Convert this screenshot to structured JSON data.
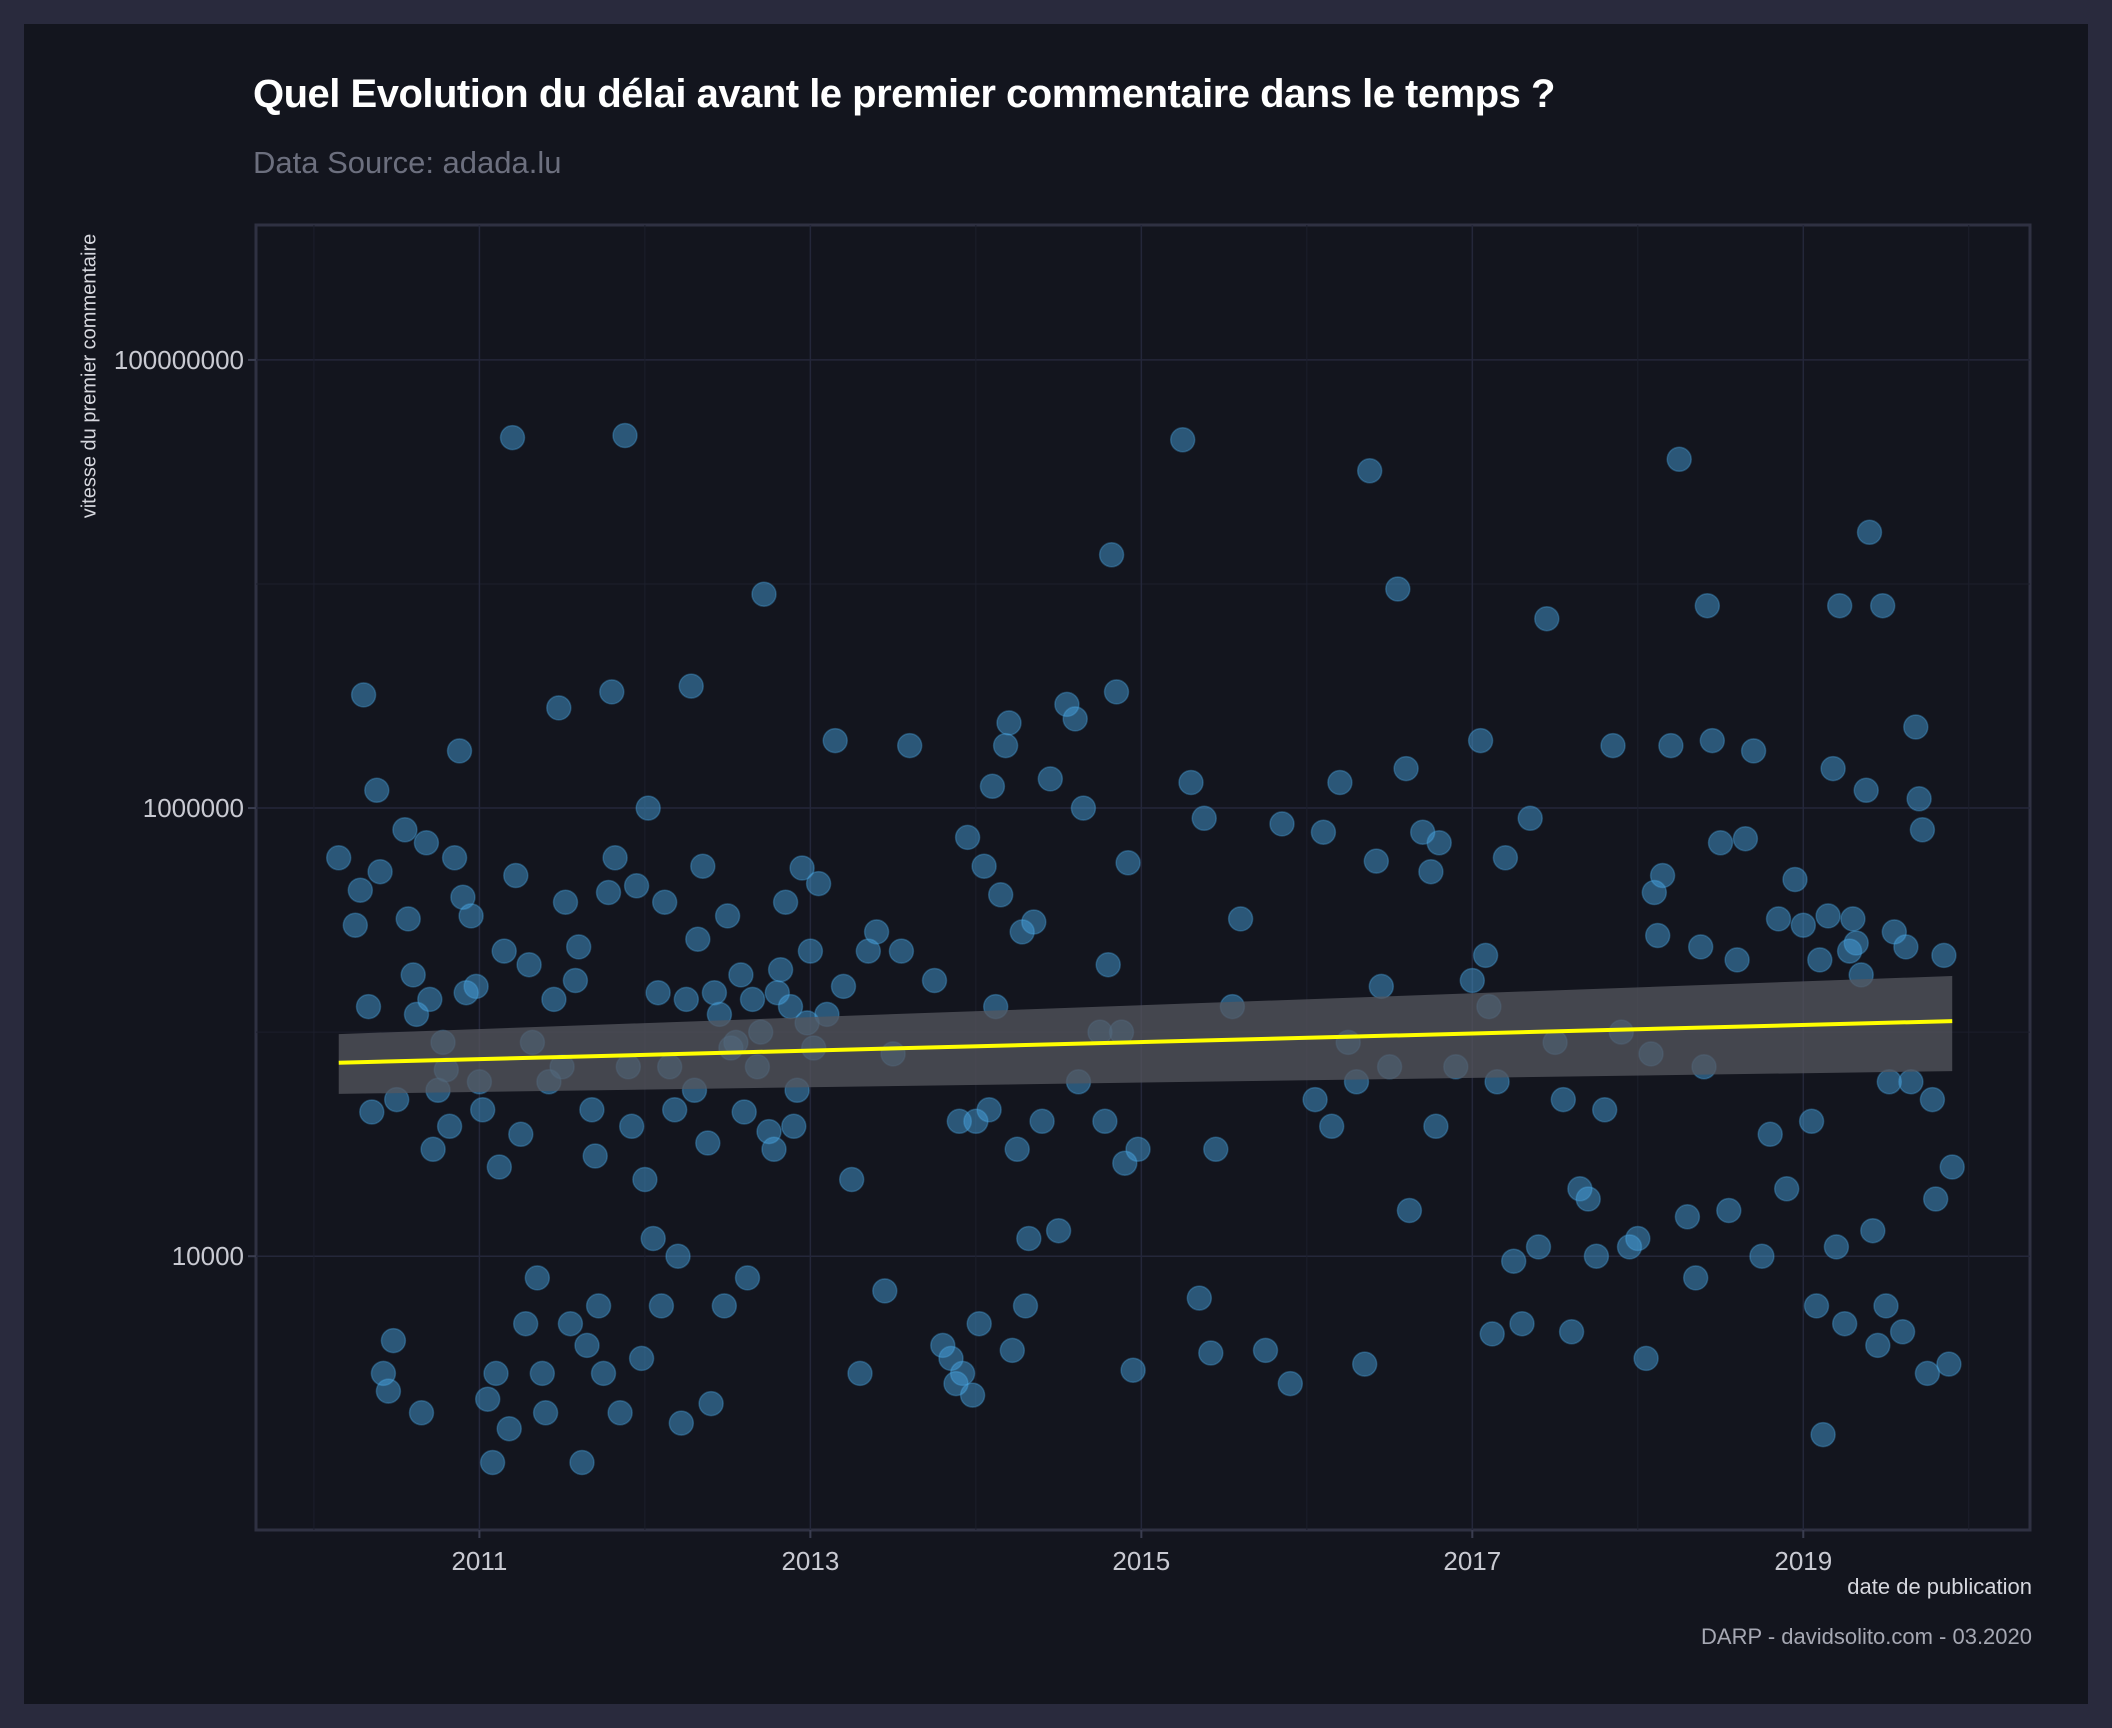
{
  "chart_data": {
    "type": "scatter",
    "title": "Quel Evolution du délai avant le premier commentaire dans le temps ?",
    "subtitle": "Data Source: adada.lu",
    "xlabel": "date de publication",
    "ylabel": "vitesse du premier commentaire",
    "caption": "DARP - davidsolito.com - 03.2020",
    "x_axis": {
      "type": "date",
      "ticks": [
        "2011",
        "2013",
        "2015",
        "2017",
        "2019"
      ],
      "range": [
        2009.65,
        2020.37
      ]
    },
    "y_axis": {
      "scale": "log10",
      "ticks": [
        "10000",
        "1000000",
        "100000000"
      ],
      "range": [
        600,
        400000000
      ]
    },
    "grid": true,
    "trend": {
      "method": "linear",
      "x": [
        2010.15,
        2019.9
      ],
      "y": [
        73000,
        112000
      ],
      "ci_low": [
        53000,
        67000
      ],
      "ci_high": [
        98000,
        178000
      ]
    },
    "colors": {
      "points": "#4aa8e6",
      "trend": "#ffff00",
      "ci_band": "#55575f",
      "background": "#13151e",
      "panel_border": "#2f3142"
    },
    "points": [
      [
        2010.15,
        600000
      ],
      [
        2010.25,
        300000
      ],
      [
        2010.28,
        430000
      ],
      [
        2010.3,
        3200000
      ],
      [
        2010.33,
        130000
      ],
      [
        2010.35,
        44000
      ],
      [
        2010.38,
        1200000
      ],
      [
        2010.4,
        520000
      ],
      [
        2010.42,
        3000
      ],
      [
        2010.45,
        2500
      ],
      [
        2010.48,
        4200
      ],
      [
        2010.5,
        50000
      ],
      [
        2010.55,
        800000
      ],
      [
        2010.57,
        320000
      ],
      [
        2010.6,
        180000
      ],
      [
        2010.62,
        120000
      ],
      [
        2010.65,
        2000
      ],
      [
        2010.68,
        700000
      ],
      [
        2010.7,
        140000
      ],
      [
        2010.72,
        30000
      ],
      [
        2010.75,
        55000
      ],
      [
        2010.78,
        90000
      ],
      [
        2010.8,
        68000
      ],
      [
        2010.82,
        38000
      ],
      [
        2010.85,
        600000
      ],
      [
        2010.88,
        1800000
      ],
      [
        2010.9,
        400000
      ],
      [
        2010.92,
        150000
      ],
      [
        2010.95,
        330000
      ],
      [
        2010.98,
        160000
      ],
      [
        2011.0,
        60000
      ],
      [
        2011.02,
        45000
      ],
      [
        2011.05,
        2300
      ],
      [
        2011.08,
        1200
      ],
      [
        2011.1,
        3000
      ],
      [
        2011.12,
        25000
      ],
      [
        2011.15,
        230000
      ],
      [
        2011.18,
        1700
      ],
      [
        2011.2,
        45000000
      ],
      [
        2011.22,
        500000
      ],
      [
        2011.25,
        35000
      ],
      [
        2011.28,
        5000
      ],
      [
        2011.3,
        200000
      ],
      [
        2011.32,
        90000
      ],
      [
        2011.35,
        8000
      ],
      [
        2011.38,
        3000
      ],
      [
        2011.4,
        2000
      ],
      [
        2011.42,
        60000
      ],
      [
        2011.45,
        140000
      ],
      [
        2011.48,
        2800000
      ],
      [
        2011.5,
        70000
      ],
      [
        2011.52,
        380000
      ],
      [
        2011.55,
        5000
      ],
      [
        2011.58,
        170000
      ],
      [
        2011.6,
        240000
      ],
      [
        2011.62,
        1200
      ],
      [
        2011.65,
        4000
      ],
      [
        2011.68,
        45000
      ],
      [
        2011.7,
        28000
      ],
      [
        2011.72,
        6000
      ],
      [
        2011.75,
        3000
      ],
      [
        2011.78,
        420000
      ],
      [
        2011.8,
        3300000
      ],
      [
        2011.82,
        600000
      ],
      [
        2011.85,
        2000
      ],
      [
        2011.88,
        46000000
      ],
      [
        2011.9,
        70000
      ],
      [
        2011.92,
        38000
      ],
      [
        2011.95,
        450000
      ],
      [
        2011.98,
        3500
      ],
      [
        2012.0,
        22000
      ],
      [
        2012.02,
        1000000
      ],
      [
        2012.05,
        12000
      ],
      [
        2012.08,
        150000
      ],
      [
        2012.1,
        6000
      ],
      [
        2012.12,
        380000
      ],
      [
        2012.15,
        70000
      ],
      [
        2012.18,
        45000
      ],
      [
        2012.2,
        10000
      ],
      [
        2012.22,
        1800
      ],
      [
        2012.25,
        140000
      ],
      [
        2012.28,
        3500000
      ],
      [
        2012.3,
        55000
      ],
      [
        2012.32,
        260000
      ],
      [
        2012.35,
        550000
      ],
      [
        2012.38,
        32000
      ],
      [
        2012.4,
        2200
      ],
      [
        2012.42,
        150000
      ],
      [
        2012.45,
        120000
      ],
      [
        2012.48,
        6000
      ],
      [
        2012.5,
        330000
      ],
      [
        2012.52,
        85000
      ],
      [
        2012.55,
        90000
      ],
      [
        2012.58,
        180000
      ],
      [
        2012.6,
        44000
      ],
      [
        2012.62,
        8000
      ],
      [
        2012.65,
        140000
      ],
      [
        2012.68,
        70000
      ],
      [
        2012.7,
        100000
      ],
      [
        2012.72,
        9000000
      ],
      [
        2012.75,
        36000
      ],
      [
        2012.78,
        30000
      ],
      [
        2012.8,
        150000
      ],
      [
        2012.82,
        190000
      ],
      [
        2012.85,
        380000
      ],
      [
        2012.88,
        130000
      ],
      [
        2012.9,
        38000
      ],
      [
        2012.92,
        55000
      ],
      [
        2012.95,
        540000
      ],
      [
        2012.98,
        110000
      ],
      [
        2013.0,
        230000
      ],
      [
        2013.02,
        85000
      ],
      [
        2013.05,
        460000
      ],
      [
        2013.1,
        120000
      ],
      [
        2013.15,
        2000000
      ],
      [
        2013.2,
        160000
      ],
      [
        2013.25,
        22000
      ],
      [
        2013.3,
        3000
      ],
      [
        2013.35,
        230000
      ],
      [
        2013.4,
        280000
      ],
      [
        2013.45,
        7000
      ],
      [
        2013.5,
        80000
      ],
      [
        2013.55,
        230000
      ],
      [
        2013.6,
        1900000
      ],
      [
        2013.75,
        170000
      ],
      [
        2013.8,
        4000
      ],
      [
        2013.85,
        3500
      ],
      [
        2013.88,
        2700
      ],
      [
        2013.9,
        40000
      ],
      [
        2013.92,
        3000
      ],
      [
        2013.95,
        740000
      ],
      [
        2013.98,
        2400
      ],
      [
        2014.0,
        40000
      ],
      [
        2014.02,
        5000
      ],
      [
        2014.05,
        550000
      ],
      [
        2014.08,
        45000
      ],
      [
        2014.1,
        1250000
      ],
      [
        2014.12,
        130000
      ],
      [
        2014.15,
        410000
      ],
      [
        2014.18,
        1900000
      ],
      [
        2014.2,
        2400000
      ],
      [
        2014.22,
        3800
      ],
      [
        2014.25,
        30000
      ],
      [
        2014.28,
        280000
      ],
      [
        2014.3,
        6000
      ],
      [
        2014.32,
        12000
      ],
      [
        2014.35,
        310000
      ],
      [
        2014.4,
        40000
      ],
      [
        2014.45,
        1350000
      ],
      [
        2014.5,
        13000
      ],
      [
        2014.55,
        2900000
      ],
      [
        2014.6,
        2500000
      ],
      [
        2014.62,
        60000
      ],
      [
        2014.65,
        1000000
      ],
      [
        2014.75,
        100000
      ],
      [
        2014.78,
        40000
      ],
      [
        2014.8,
        200000
      ],
      [
        2014.82,
        13500000
      ],
      [
        2014.85,
        3300000
      ],
      [
        2014.88,
        100000
      ],
      [
        2014.9,
        26000
      ],
      [
        2014.92,
        570000
      ],
      [
        2014.95,
        3100
      ],
      [
        2014.98,
        30000
      ],
      [
        2015.25,
        44000000
      ],
      [
        2015.3,
        1300000
      ],
      [
        2015.35,
        6500
      ],
      [
        2015.38,
        900000
      ],
      [
        2015.42,
        3700
      ],
      [
        2015.45,
        30000
      ],
      [
        2015.55,
        130000
      ],
      [
        2015.6,
        320000
      ],
      [
        2015.75,
        3800
      ],
      [
        2015.85,
        850000
      ],
      [
        2015.9,
        2700
      ],
      [
        2016.05,
        50000
      ],
      [
        2016.1,
        780000
      ],
      [
        2016.15,
        38000
      ],
      [
        2016.2,
        1300000
      ],
      [
        2016.25,
        90000
      ],
      [
        2016.3,
        60000
      ],
      [
        2016.35,
        3300
      ],
      [
        2016.38,
        32000000
      ],
      [
        2016.42,
        580000
      ],
      [
        2016.45,
        160000
      ],
      [
        2016.5,
        70000
      ],
      [
        2016.55,
        9500000
      ],
      [
        2016.6,
        1500000
      ],
      [
        2016.62,
        16000
      ],
      [
        2016.7,
        780000
      ],
      [
        2016.75,
        520000
      ],
      [
        2016.78,
        38000
      ],
      [
        2016.8,
        700000
      ],
      [
        2016.9,
        70000
      ],
      [
        2017.0,
        170000
      ],
      [
        2017.05,
        2000000
      ],
      [
        2017.08,
        220000
      ],
      [
        2017.1,
        130000
      ],
      [
        2017.12,
        4500
      ],
      [
        2017.15,
        60000
      ],
      [
        2017.2,
        600000
      ],
      [
        2017.25,
        9500
      ],
      [
        2017.3,
        5000
      ],
      [
        2017.35,
        900000
      ],
      [
        2017.4,
        11000
      ],
      [
        2017.45,
        7000000
      ],
      [
        2017.5,
        90000
      ],
      [
        2017.55,
        50000
      ],
      [
        2017.6,
        4600
      ],
      [
        2017.65,
        20000
      ],
      [
        2017.7,
        18000
      ],
      [
        2017.75,
        10000
      ],
      [
        2017.8,
        45000
      ],
      [
        2017.85,
        1900000
      ],
      [
        2017.9,
        100000
      ],
      [
        2017.95,
        11000
      ],
      [
        2018.0,
        12000
      ],
      [
        2018.05,
        3500
      ],
      [
        2018.08,
        80000
      ],
      [
        2018.1,
        420000
      ],
      [
        2018.12,
        270000
      ],
      [
        2018.15,
        500000
      ],
      [
        2018.2,
        1900000
      ],
      [
        2018.25,
        36000000
      ],
      [
        2018.3,
        15000
      ],
      [
        2018.35,
        8000
      ],
      [
        2018.38,
        240000
      ],
      [
        2018.4,
        70000
      ],
      [
        2018.42,
        8000000
      ],
      [
        2018.45,
        2000000
      ],
      [
        2018.5,
        700000
      ],
      [
        2018.55,
        16000
      ],
      [
        2018.6,
        210000
      ],
      [
        2018.65,
        730000
      ],
      [
        2018.7,
        1800000
      ],
      [
        2018.75,
        10000
      ],
      [
        2018.8,
        35000
      ],
      [
        2018.85,
        320000
      ],
      [
        2018.9,
        20000
      ],
      [
        2018.95,
        480000
      ],
      [
        2019.0,
        300000
      ],
      [
        2019.05,
        40000
      ],
      [
        2019.08,
        6000
      ],
      [
        2019.1,
        210000
      ],
      [
        2019.12,
        1600
      ],
      [
        2019.15,
        330000
      ],
      [
        2019.18,
        1500000
      ],
      [
        2019.2,
        11000
      ],
      [
        2019.22,
        8000000
      ],
      [
        2019.25,
        5000
      ],
      [
        2019.28,
        230000
      ],
      [
        2019.3,
        320000
      ],
      [
        2019.32,
        250000
      ],
      [
        2019.35,
        180000
      ],
      [
        2019.38,
        1200000
      ],
      [
        2019.4,
        17000000
      ],
      [
        2019.42,
        13000
      ],
      [
        2019.45,
        4000
      ],
      [
        2019.48,
        8000000
      ],
      [
        2019.5,
        6000
      ],
      [
        2019.52,
        60000
      ],
      [
        2019.55,
        280000
      ],
      [
        2019.6,
        4600
      ],
      [
        2019.62,
        240000
      ],
      [
        2019.65,
        60000
      ],
      [
        2019.68,
        2300000
      ],
      [
        2019.7,
        1100000
      ],
      [
        2019.72,
        800000
      ],
      [
        2019.75,
        3000
      ],
      [
        2019.78,
        50000
      ],
      [
        2019.8,
        18000
      ],
      [
        2019.85,
        220000
      ],
      [
        2019.88,
        3300
      ],
      [
        2019.9,
        25000
      ]
    ]
  }
}
